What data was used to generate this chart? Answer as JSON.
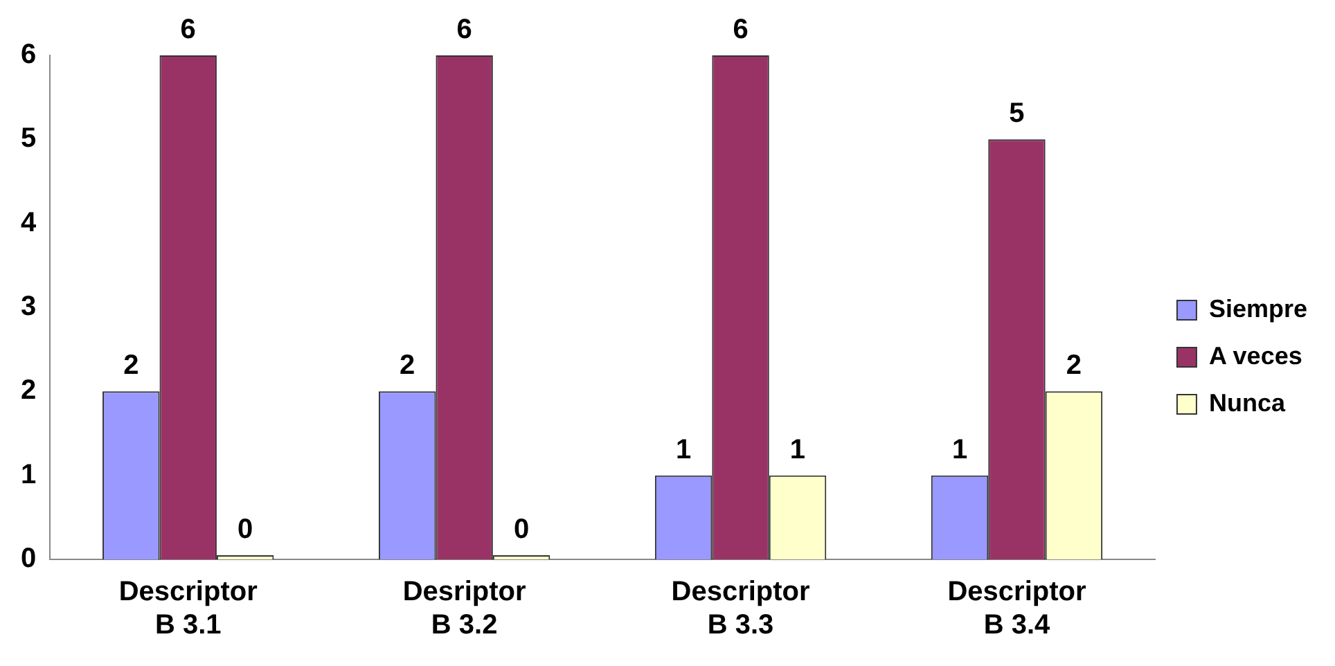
{
  "chart_data": {
    "type": "bar",
    "categories": [
      "Descriptor B 3.1",
      "Desriptor B 3.2",
      "Descriptor B 3.3",
      "Descriptor B 3.4"
    ],
    "series": [
      {
        "name": "Siempre",
        "color": "#9999ff",
        "values": [
          2,
          2,
          1,
          1
        ]
      },
      {
        "name": "A veces",
        "color": "#993366",
        "values": [
          6,
          6,
          6,
          5
        ]
      },
      {
        "name": "Nunca",
        "color": "#ffffcc",
        "values": [
          0,
          0,
          1,
          2
        ]
      }
    ],
    "ylim": [
      0,
      6
    ],
    "yticks": [
      0,
      1,
      2,
      3,
      4,
      5,
      6
    ],
    "grid": false,
    "legend": "right",
    "data_labels": true
  }
}
